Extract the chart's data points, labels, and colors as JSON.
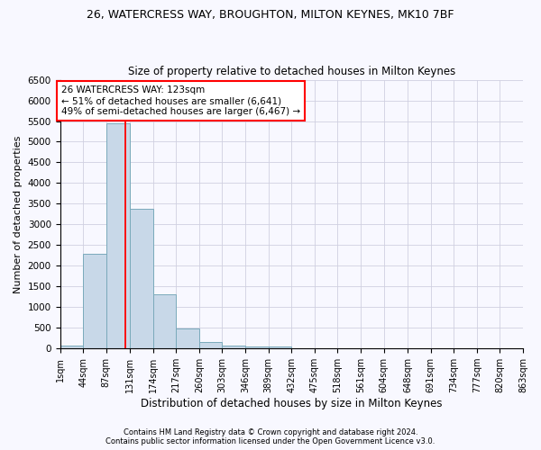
{
  "title1": "26, WATERCRESS WAY, BROUGHTON, MILTON KEYNES, MK10 7BF",
  "title2": "Size of property relative to detached houses in Milton Keynes",
  "xlabel": "Distribution of detached houses by size in Milton Keynes",
  "ylabel": "Number of detached properties",
  "bin_edges": [
    1,
    44,
    87,
    131,
    174,
    217,
    260,
    303,
    346,
    389,
    432,
    475,
    518,
    561,
    604,
    648,
    691,
    734,
    777,
    820,
    863
  ],
  "bar_heights": [
    80,
    2280,
    5450,
    3380,
    1320,
    490,
    160,
    80,
    50,
    50,
    0,
    0,
    0,
    0,
    0,
    0,
    0,
    0,
    0,
    0
  ],
  "bar_color": "#c8d8e8",
  "bar_edge_color": "#7aaabb",
  "grid_color": "#d0d0e0",
  "vline_x": 123,
  "vline_color": "red",
  "annotation_text": "26 WATERCRESS WAY: 123sqm\n← 51% of detached houses are smaller (6,641)\n49% of semi-detached houses are larger (6,467) →",
  "annotation_box_color": "white",
  "annotation_border_color": "red",
  "ylim": [
    0,
    6500
  ],
  "yticks": [
    0,
    500,
    1000,
    1500,
    2000,
    2500,
    3000,
    3500,
    4000,
    4500,
    5000,
    5500,
    6000,
    6500
  ],
  "footer1": "Contains HM Land Registry data © Crown copyright and database right 2024.",
  "footer2": "Contains public sector information licensed under the Open Government Licence v3.0.",
  "bg_color": "#f8f8ff",
  "figsize": [
    6.0,
    5.0
  ],
  "dpi": 100
}
